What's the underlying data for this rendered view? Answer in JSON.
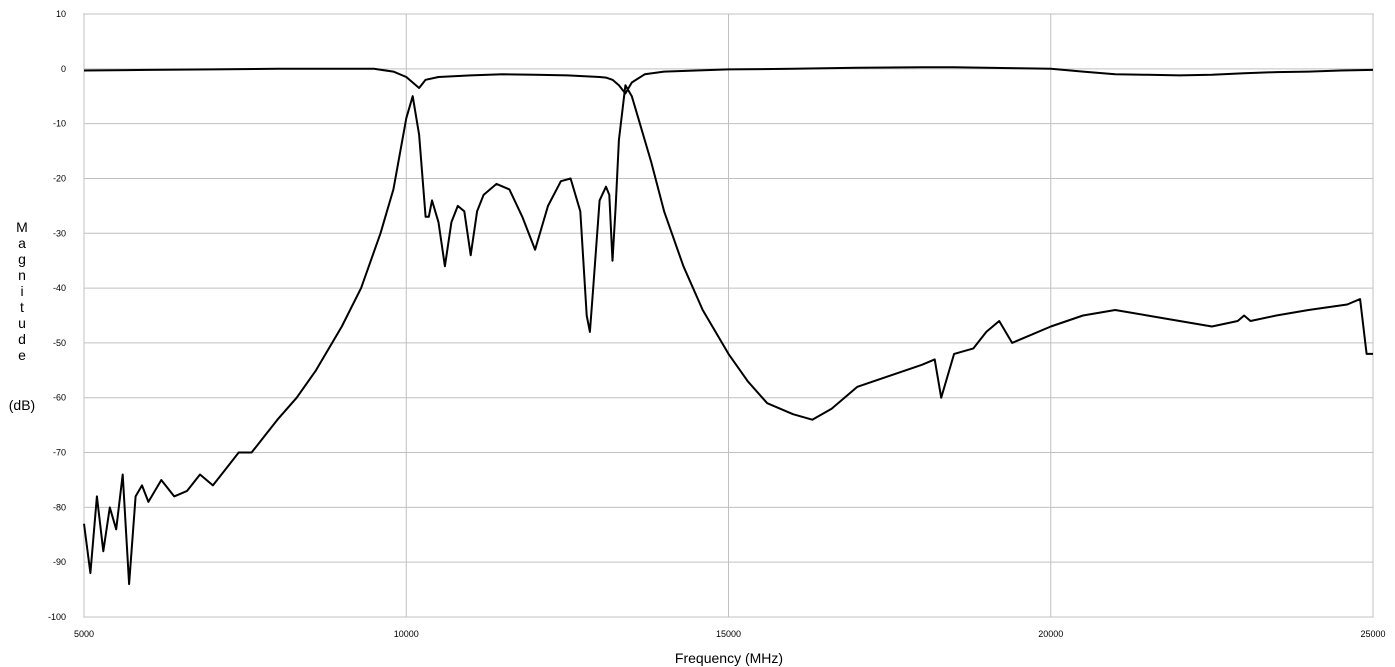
{
  "chart_data": {
    "type": "line",
    "title": "",
    "xlabel": "Frequency (MHz)",
    "ylabel": "Magnitude",
    "ylabel_unit": "(dB)",
    "xlim": [
      5000,
      25000
    ],
    "ylim": [
      -100,
      10
    ],
    "grid": true,
    "xticks": [
      5000,
      10000,
      15000,
      20000,
      25000
    ],
    "yticks": [
      10,
      0,
      -10,
      -20,
      -30,
      -40,
      -50,
      -60,
      -70,
      -80,
      -90,
      -100
    ],
    "series": [
      {
        "x": [
          5000,
          6000,
          7000,
          8000,
          9000,
          9500,
          9800,
          10000,
          10100,
          10200,
          10300,
          10500,
          11000,
          11500,
          12000,
          12500,
          13000,
          13100,
          13200,
          13300,
          13400,
          13500,
          13700,
          14000,
          15000,
          16000,
          17000,
          18000,
          18500,
          19000,
          19500,
          20000,
          20500,
          21000,
          21500,
          22000,
          22500,
          23000,
          23500,
          24000,
          24500,
          25000
        ],
        "values": [
          -0.3,
          -0.2,
          -0.1,
          0,
          0,
          0,
          -0.5,
          -1.5,
          -2.5,
          -3.5,
          -2,
          -1.5,
          -1.2,
          -1.0,
          -1.1,
          -1.2,
          -1.5,
          -1.6,
          -2.0,
          -3.0,
          -4.5,
          -2.5,
          -1.0,
          -0.5,
          -0.1,
          0,
          0.2,
          0.3,
          0.3,
          0.2,
          0.1,
          0,
          -0.5,
          -1.0,
          -1.1,
          -1.2,
          -1.1,
          -0.8,
          -0.6,
          -0.5,
          -0.3,
          -0.2
        ]
      },
      {
        "x": [
          5000,
          5100,
          5200,
          5300,
          5400,
          5500,
          5600,
          5700,
          5800,
          5900,
          6000,
          6200,
          6400,
          6600,
          6800,
          7000,
          7200,
          7400,
          7600,
          7800,
          8000,
          8300,
          8600,
          9000,
          9300,
          9600,
          9800,
          10000,
          10100,
          10200,
          10300,
          10350,
          10400,
          10500,
          10600,
          10700,
          10800,
          10900,
          11000,
          11100,
          11200,
          11400,
          11600,
          11800,
          12000,
          12200,
          12400,
          12550,
          12700,
          12800,
          12850,
          12900,
          13000,
          13100,
          13150,
          13200,
          13250,
          13300,
          13400,
          13500,
          13600,
          13800,
          14000,
          14300,
          14600,
          15000,
          15300,
          15600,
          16000,
          16300,
          16600,
          17000,
          17500,
          18000,
          18200,
          18300,
          18500,
          18800,
          19000,
          19200,
          19400,
          19600,
          20000,
          20500,
          21000,
          21500,
          22000,
          22500,
          22900,
          23000,
          23100,
          23500,
          24000,
          24600,
          24800,
          24900,
          25000
        ],
        "values": [
          -83,
          -92,
          -78,
          -88,
          -80,
          -84,
          -74,
          -94,
          -78,
          -76,
          -79,
          -75,
          -78,
          -77,
          -74,
          -76,
          -73,
          -70,
          -70,
          -67,
          -64,
          -60,
          -55,
          -47,
          -40,
          -30,
          -22,
          -9,
          -5,
          -12,
          -27,
          -27,
          -24,
          -28,
          -36,
          -28,
          -25,
          -26,
          -34,
          -26,
          -23,
          -21,
          -22,
          -27,
          -33,
          -25,
          -20.5,
          -20,
          -26,
          -45,
          -48,
          -40,
          -24,
          -21.5,
          -23,
          -35,
          -25,
          -13,
          -3,
          -5,
          -9,
          -17,
          -26,
          -36,
          -44,
          -52,
          -57,
          -61,
          -63,
          -64,
          -62,
          -58,
          -56,
          -54,
          -53,
          -60,
          -52,
          -51,
          -48,
          -46,
          -50,
          -49,
          -47,
          -45,
          -44,
          -45,
          -46,
          -47,
          -46,
          -45,
          -46,
          -45,
          -44,
          -43,
          -42,
          -52,
          -52
        ]
      }
    ]
  }
}
